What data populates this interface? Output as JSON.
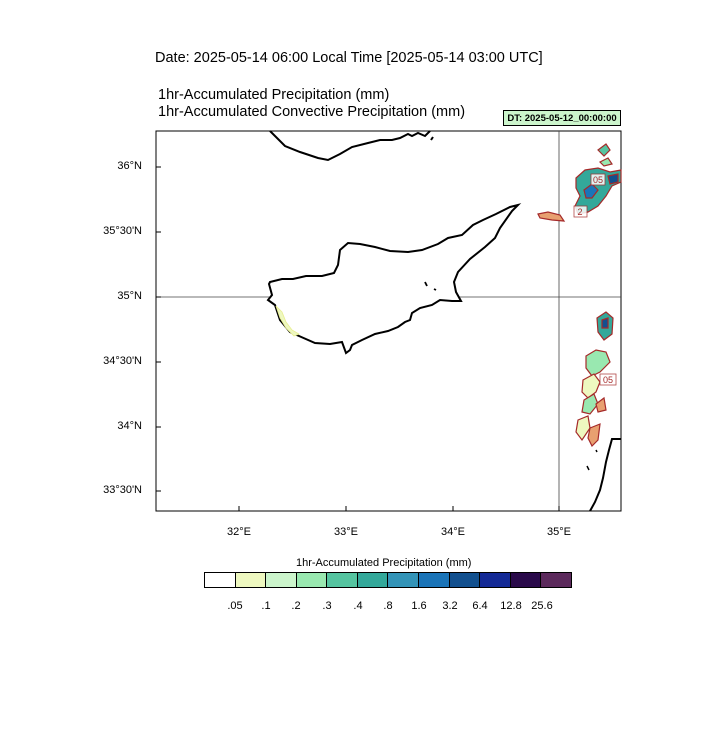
{
  "header": {
    "date_line": "Date: 2025-05-14  06:00 Local Time [2025-05-14  03:00 UTC]",
    "title_1": "1hr-Accumulated Precipitation   (mm)",
    "title_2": "1hr-Accumulated Convective Precipitation   (mm)",
    "dt_label": "DT: 2025-05-12_00:00:00"
  },
  "map": {
    "lat_labels": [
      "36°N",
      "35°30'N",
      "35°N",
      "34°30'N",
      "34°N",
      "33°30'N"
    ],
    "lon_labels": [
      "32°E",
      "33°E",
      "34°E",
      "35°E"
    ],
    "contour_labels": [
      "05",
      "2",
      "05"
    ],
    "coastline_color": "#000000",
    "contour_color": "#a52a2a"
  },
  "colorbar": {
    "title": "1hr-Accumulated Precipitation  (mm)",
    "ticks": [
      ".05",
      ".1",
      ".2",
      ".3",
      ".4",
      ".8",
      "1.6",
      "3.2",
      "6.4",
      "12.8",
      "25.6"
    ],
    "colors": [
      "#ffffff",
      "#eef8c0",
      "#ccf5cc",
      "#99e8b0",
      "#55c4a0",
      "#33a89a",
      "#3394b8",
      "#1a74b8",
      "#12508f",
      "#142a96",
      "#2a0a4a",
      "#5c2a5c"
    ]
  }
}
